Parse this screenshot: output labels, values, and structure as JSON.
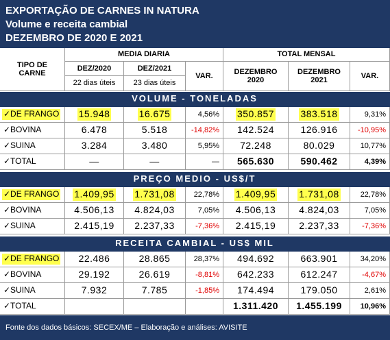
{
  "header": {
    "title": [
      "EXPORTAÇÃO DE CARNES IN NATURA",
      "Volume e receita cambial",
      "DEZEMBRO DE 2020 E 2021"
    ]
  },
  "table": {
    "columns": {
      "type": "TIPO DE CARNE",
      "daily": "MEDIA DIARIA",
      "monthly": "TOTAL MENSAL",
      "d2020": "DEZ/2020",
      "d2021": "DEZ/2021",
      "var1": "VAR.",
      "m2020": "DEZEMBRO 2020",
      "m2021": "DEZEMBRO 2021",
      "var2": "VAR.",
      "days2020": "22 dias úteis",
      "days2021": "23 dias úteis"
    },
    "sections": [
      {
        "title": "VOLUME - TONELADAS",
        "rows": [
          [
            "✓DE FRANGO",
            "15.948",
            "16.675",
            "4,56%",
            "350.857",
            "383.518",
            "9,31%"
          ],
          [
            "✓BOVINA",
            "6.478",
            "5.518",
            "-14,82%",
            "142.524",
            "126.916",
            "-10,95%"
          ],
          [
            "✓SUINA",
            "3.284",
            "3.480",
            "5,95%",
            "72.248",
            "80.029",
            "10,77%"
          ],
          [
            "✓TOTAL",
            "—",
            "—",
            "—",
            "565.630",
            "590.462",
            "4,39%"
          ]
        ]
      },
      {
        "title": "PREÇO MEDIO - US$/T",
        "rows": [
          [
            "✓DE FRANGO",
            "1.409,95",
            "1.731,08",
            "22,78%",
            "1.409,95",
            "1.731,08",
            "22,78%"
          ],
          [
            "✓BOVINA",
            "4.506,13",
            "4.824,03",
            "7,05%",
            "4.506,13",
            "4.824,03",
            "7,05%"
          ],
          [
            "✓SUINA",
            "2.415,19",
            "2.237,33",
            "-7,36%",
            "2.415,19",
            "2.237,33",
            "-7,36%"
          ]
        ]
      },
      {
        "title": "RECEITA CAMBIAL - US$ MIL",
        "rows": [
          [
            "✓DE FRANGO",
            "22.486",
            "28.865",
            "28,37%",
            "494.692",
            "663.901",
            "34,20%"
          ],
          [
            "✓BOVINA",
            "29.192",
            "26.619",
            "-8,81%",
            "642.233",
            "612.247",
            "-4,67%"
          ],
          [
            "✓SUINA",
            "7.932",
            "7.785",
            "-1,85%",
            "174.494",
            "179.050",
            "2,61%"
          ],
          [
            "✓TOTAL",
            null,
            null,
            null,
            "1.311.420",
            "1.455.199",
            "10,96%"
          ]
        ]
      }
    ]
  },
  "footer": "Fonte dos dados básicos: SECEX/ME – Elaboração e análises: AVISITE"
}
